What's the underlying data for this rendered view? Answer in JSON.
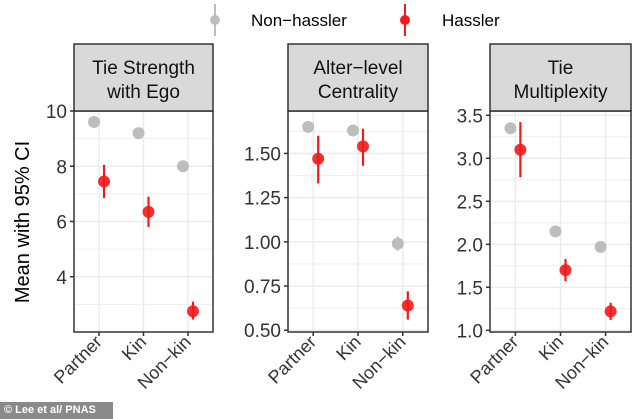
{
  "chart_data": [
    {
      "type": "scatter",
      "title": "Tie Strength with Ego",
      "title_lines": [
        "Tie Strength",
        "with Ego"
      ],
      "categories": [
        "Partner",
        "Kin",
        "Non-kin"
      ],
      "yticks": [
        4,
        6,
        8,
        10
      ],
      "ylim": [
        2.0,
        10.0
      ],
      "series": [
        {
          "name": "Non-hassler",
          "values": [
            9.6,
            9.2,
            8.0
          ],
          "ci": [
            [
              9.55,
              9.65
            ],
            [
              9.15,
              9.25
            ],
            [
              7.95,
              8.05
            ]
          ]
        },
        {
          "name": "Hassler",
          "values": [
            7.45,
            6.35,
            2.75
          ],
          "ci": [
            [
              6.85,
              8.05
            ],
            [
              5.8,
              6.9
            ],
            [
              2.45,
              3.1
            ]
          ]
        }
      ]
    },
    {
      "type": "scatter",
      "title": "Alter-level Centrality",
      "title_lines": [
        "Alter−level",
        "Centrality"
      ],
      "categories": [
        "Partner",
        "Kin",
        "Non-kin"
      ],
      "yticks": [
        "0.50",
        "0.75",
        "1.00",
        "1.25",
        "1.50"
      ],
      "ylim": [
        0.49,
        1.74
      ],
      "series": [
        {
          "name": "Non-hassler",
          "values": [
            1.65,
            1.63,
            0.99
          ],
          "ci": [
            [
              1.62,
              1.68
            ],
            [
              1.61,
              1.65
            ],
            [
              0.95,
              1.03
            ]
          ]
        },
        {
          "name": "Hassler",
          "values": [
            1.47,
            1.54,
            0.64
          ],
          "ci": [
            [
              1.33,
              1.6
            ],
            [
              1.43,
              1.64
            ],
            [
              0.56,
              0.72
            ]
          ]
        }
      ]
    },
    {
      "type": "scatter",
      "title": "Tie Multiplexity",
      "title_lines": [
        "Tie",
        "Multiplexity"
      ],
      "categories": [
        "Partner",
        "Kin",
        "Non-kin"
      ],
      "yticks": [
        "1.0",
        "1.5",
        "2.0",
        "2.5",
        "3.0",
        "3.5"
      ],
      "ylim": [
        0.98,
        3.55
      ],
      "series": [
        {
          "name": "Non-hassler",
          "values": [
            3.35,
            2.15,
            1.97
          ],
          "ci": [
            [
              3.31,
              3.39
            ],
            [
              2.12,
              2.18
            ],
            [
              1.94,
              2.0
            ]
          ]
        },
        {
          "name": "Hassler",
          "values": [
            3.1,
            1.7,
            1.22
          ],
          "ci": [
            [
              2.78,
              3.42
            ],
            [
              1.57,
              1.83
            ],
            [
              1.12,
              1.32
            ]
          ]
        }
      ]
    }
  ],
  "ylabel": "Mean with 95% CI",
  "legend": {
    "position": "top",
    "items": [
      {
        "label": "Non−hassler",
        "color": "#bdbdbd"
      },
      {
        "label": "Hassler",
        "color": "#f21a1a"
      }
    ]
  },
  "grid": true,
  "credit": "© Lee et al/ PNAS"
}
